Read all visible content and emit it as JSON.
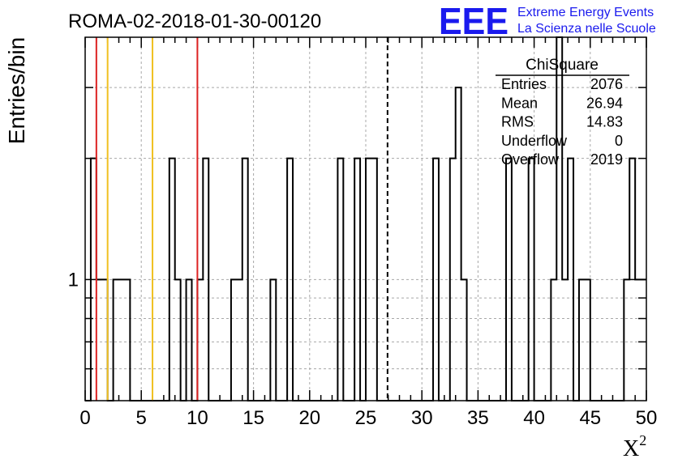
{
  "chart_data": {
    "type": "histogram",
    "title": "ROMA-02-2018-01-30-00120",
    "ylabel": "Entries/bin",
    "xlabel": "X",
    "xlabel_superscript": "2",
    "yscale": "log",
    "xlim": [
      0,
      50
    ],
    "ylim": [
      0.5,
      4.0
    ],
    "grid": true,
    "x_ticks": [
      0,
      5,
      10,
      15,
      20,
      25,
      30,
      35,
      40,
      45,
      50
    ],
    "y_tick_labels": [
      {
        "value": 1,
        "label": "1"
      }
    ],
    "bin_width": 0.5,
    "bins": [
      {
        "x": 0.5,
        "count": 2
      },
      {
        "x": 1.0,
        "count": 1
      },
      {
        "x": 1.5,
        "count": 1
      },
      {
        "x": 2.5,
        "count": 1
      },
      {
        "x": 3.0,
        "count": 1
      },
      {
        "x": 3.5,
        "count": 1
      },
      {
        "x": 7.5,
        "count": 2
      },
      {
        "x": 8.0,
        "count": 1
      },
      {
        "x": 9.0,
        "count": 1
      },
      {
        "x": 10.0,
        "count": 1
      },
      {
        "x": 10.5,
        "count": 2
      },
      {
        "x": 13.0,
        "count": 1
      },
      {
        "x": 13.5,
        "count": 1
      },
      {
        "x": 14.0,
        "count": 2
      },
      {
        "x": 16.5,
        "count": 1
      },
      {
        "x": 18.0,
        "count": 2
      },
      {
        "x": 22.5,
        "count": 2
      },
      {
        "x": 24.0,
        "count": 2
      },
      {
        "x": 25.0,
        "count": 2
      },
      {
        "x": 25.5,
        "count": 2
      },
      {
        "x": 31.0,
        "count": 2
      },
      {
        "x": 32.5,
        "count": 2
      },
      {
        "x": 33.0,
        "count": 3
      },
      {
        "x": 33.5,
        "count": 1
      },
      {
        "x": 37.5,
        "count": 2
      },
      {
        "x": 39.5,
        "count": 2
      },
      {
        "x": 41.5,
        "count": 1
      },
      {
        "x": 42.0,
        "count": 4
      },
      {
        "x": 42.5,
        "count": 1
      },
      {
        "x": 43.0,
        "count": 2
      },
      {
        "x": 44.0,
        "count": 1
      },
      {
        "x": 44.5,
        "count": 1
      },
      {
        "x": 48.0,
        "count": 1
      },
      {
        "x": 48.5,
        "count": 2
      },
      {
        "x": 49.0,
        "count": 1
      },
      {
        "x": 49.5,
        "count": 1
      }
    ],
    "reference_lines": [
      {
        "x": 1,
        "color": "#dd2222",
        "style": "solid"
      },
      {
        "x": 2,
        "color": "#f0c020",
        "style": "solid"
      },
      {
        "x": 6,
        "color": "#f0c020",
        "style": "solid"
      },
      {
        "x": 10,
        "color": "#dd2222",
        "style": "solid"
      },
      {
        "x": 26.94,
        "color": "#000000",
        "style": "dashed"
      }
    ],
    "stats_box": {
      "title": "ChiSquare",
      "rows": [
        {
          "label": "Entries",
          "value": "2076"
        },
        {
          "label": "Mean",
          "value": "26.94"
        },
        {
          "label": "RMS",
          "value": "14.83"
        },
        {
          "label": "Underflow",
          "value": "0"
        },
        {
          "label": "Overflow",
          "value": "2019"
        }
      ]
    }
  },
  "logo": {
    "mark": "EEE",
    "line1": "Extreme Energy Events",
    "line2": "La Scienza nelle Scuole",
    "color": "#1a1aee"
  }
}
